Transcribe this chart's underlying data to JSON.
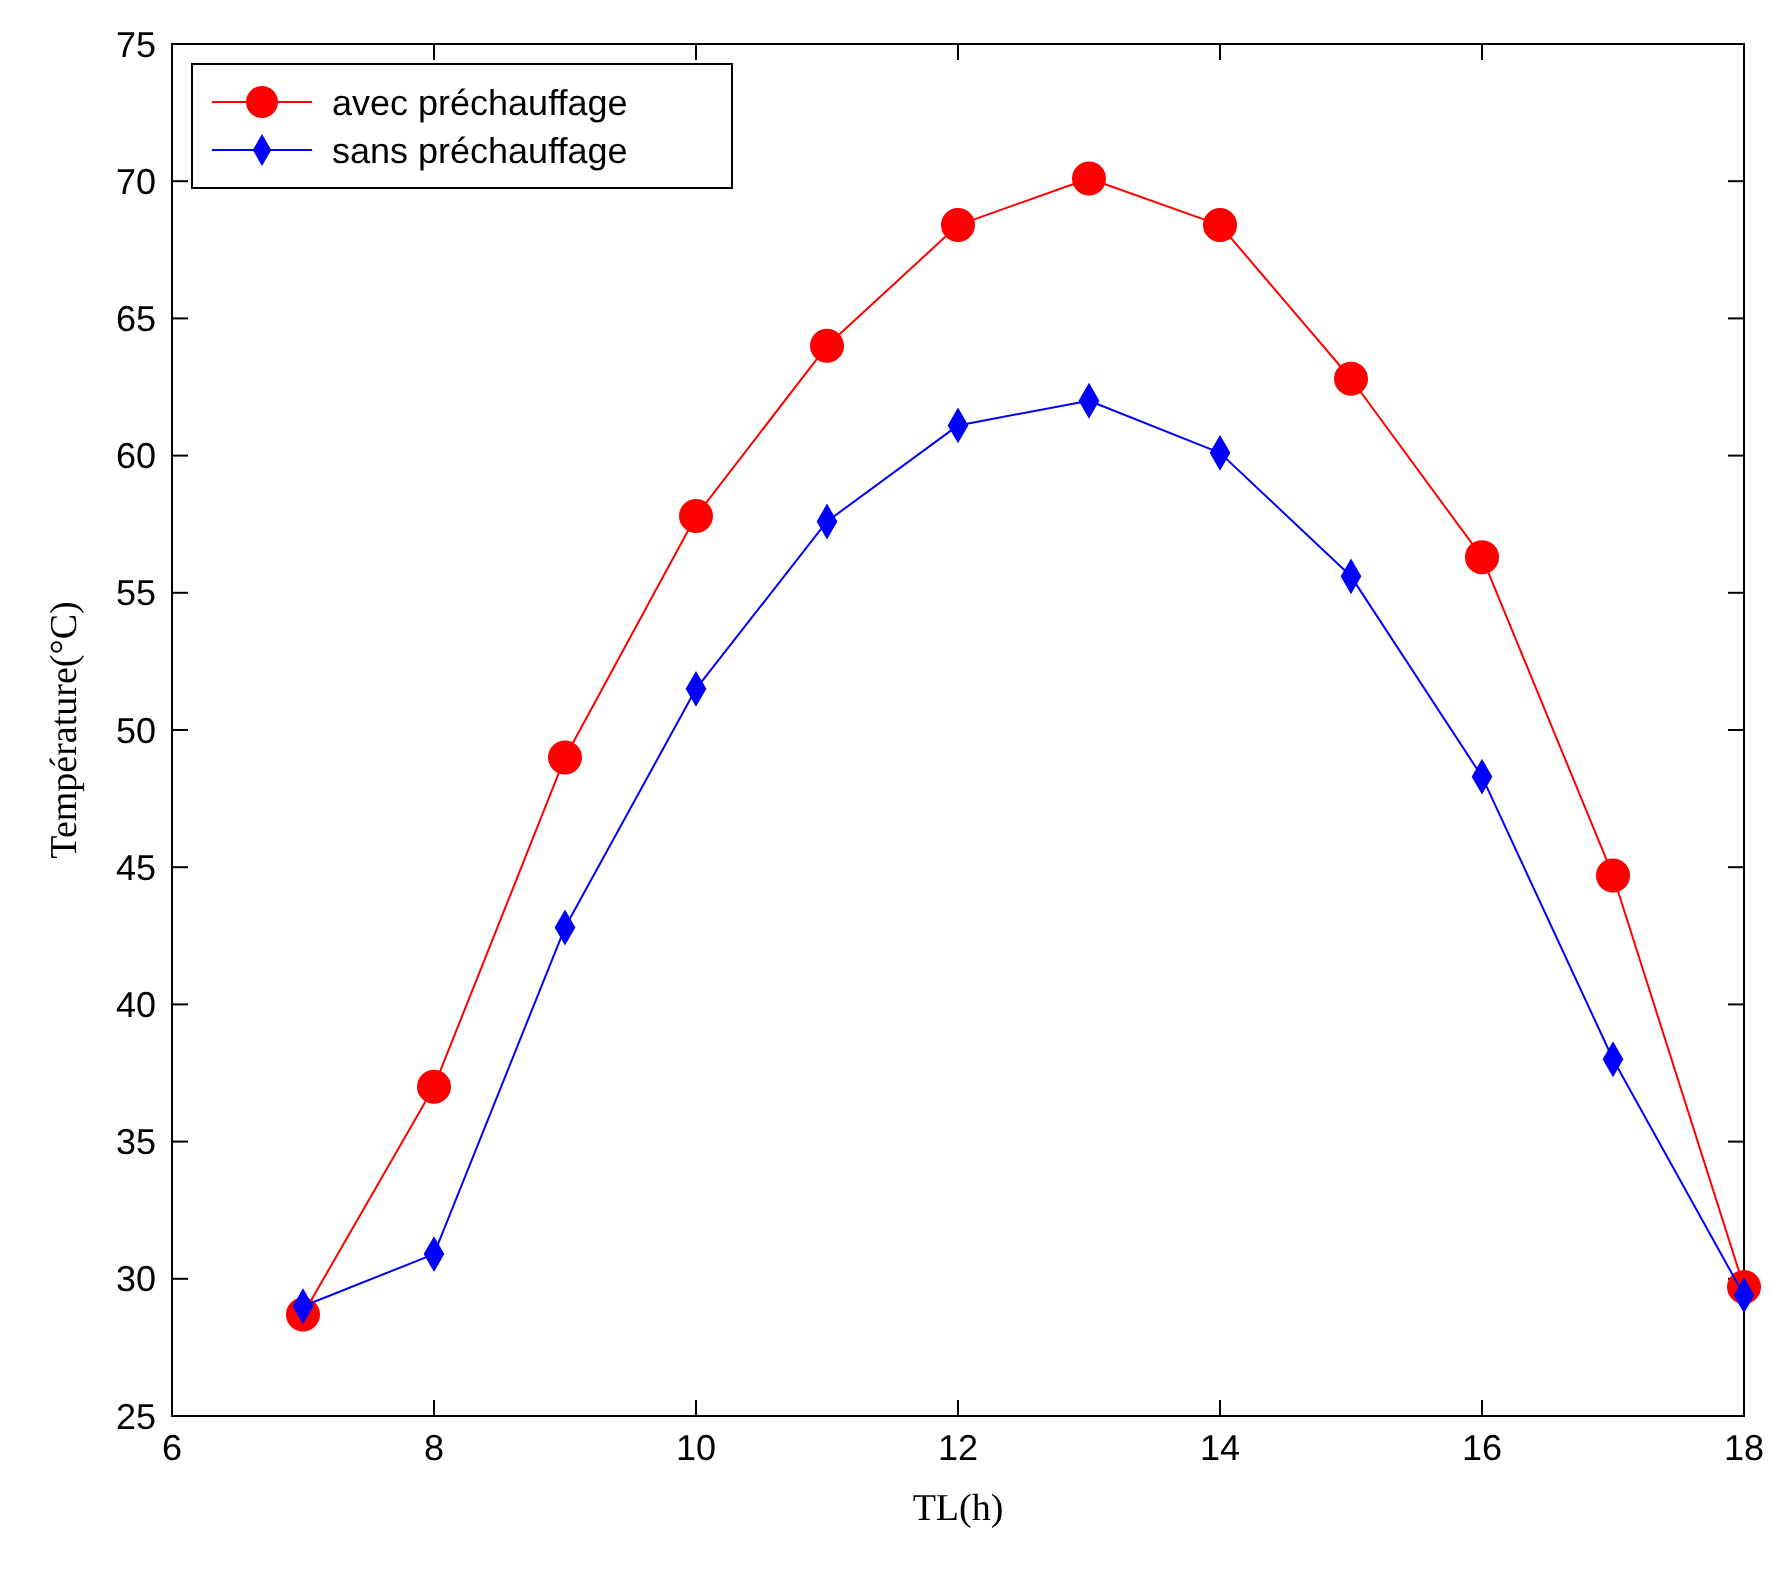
{
  "chart_data": {
    "type": "line",
    "xlabel": "TL(h)",
    "ylabel": "Température(°C)",
    "x": [
      7,
      8,
      9,
      10,
      11,
      12,
      13,
      14,
      15,
      16,
      17,
      18
    ],
    "series": [
      {
        "name": "avec préchauffage",
        "color": "#ff0000",
        "marker": "circle",
        "values": [
          28.7,
          37.0,
          49.0,
          57.8,
          64.0,
          68.4,
          70.1,
          68.4,
          62.8,
          56.3,
          44.7,
          29.7
        ]
      },
      {
        "name": "sans préchauffage",
        "color": "#0000ff",
        "marker": "diamond",
        "values": [
          29.0,
          30.9,
          42.8,
          51.5,
          57.6,
          61.1,
          62.0,
          60.1,
          55.6,
          48.3,
          38.0,
          29.4
        ]
      }
    ],
    "xlim": [
      6,
      18
    ],
    "xticks": [
      6,
      8,
      10,
      12,
      14,
      16,
      18
    ],
    "ylim": [
      25,
      75
    ],
    "yticks": [
      25,
      30,
      35,
      40,
      45,
      50,
      55,
      60,
      65,
      70,
      75
    ],
    "legend": "top left",
    "grid": false,
    "line_style": "solid"
  }
}
